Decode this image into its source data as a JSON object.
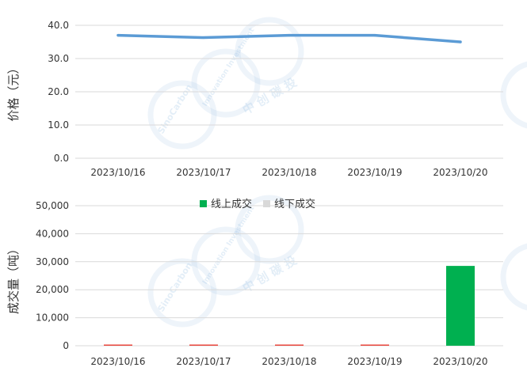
{
  "watermark": {
    "brand": "SinoCarbon",
    "sub": "Innovation Investment",
    "cn": "中 创 碳 投"
  },
  "chart_data": [
    {
      "type": "line",
      "ylabel": "价格（元）",
      "categories": [
        "2023/10/16",
        "2023/10/17",
        "2023/10/18",
        "2023/10/19",
        "2023/10/20"
      ],
      "series": [
        {
          "values": [
            37.0,
            36.3,
            37.0,
            37.0,
            35.0
          ],
          "color": "#5b9bd5"
        }
      ],
      "yticks": [
        "0.0",
        "10.0",
        "20.0",
        "30.0",
        "40.0"
      ],
      "ylim": [
        0,
        40
      ],
      "grid": true
    },
    {
      "type": "bar",
      "stacked": true,
      "ylabel": "成交量（吨）",
      "categories": [
        "2023/10/16",
        "2023/10/17",
        "2023/10/18",
        "2023/10/19",
        "2023/10/20"
      ],
      "series": [
        {
          "name": "线上成交",
          "values": [
            0,
            0,
            0,
            0,
            28500
          ],
          "color": "#00b050"
        },
        {
          "name": "线下成交",
          "values": [
            0,
            0,
            0,
            0,
            0
          ],
          "color": "#d9d9d9"
        }
      ],
      "markers": {
        "color": "#e8473d",
        "note": "near-zero values drawn as thin red marks"
      },
      "yticks": [
        "0",
        "10,000",
        "20,000",
        "30,000",
        "40,000",
        "50,000"
      ],
      "ylim": [
        0,
        50000
      ],
      "legend_position": "top-center",
      "grid": true
    }
  ]
}
